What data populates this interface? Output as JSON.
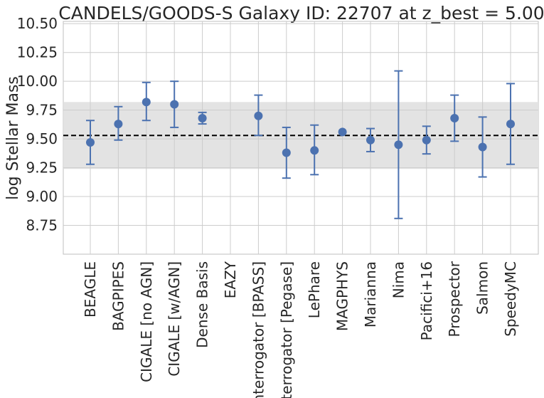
{
  "chart_data": {
    "type": "scatter",
    "title": "CANDELS/GOODS-S Galaxy ID: 22707 at z_best = 5.00",
    "xlabel": "",
    "ylabel": "log Stellar Mass",
    "ylim": [
      8.5,
      10.52
    ],
    "yticks": [
      "8.75",
      "9.00",
      "9.25",
      "9.50",
      "9.75",
      "10.00",
      "10.25",
      "10.50"
    ],
    "categories": [
      "BEAGLE",
      "BAGPIPES",
      "CIGALE [no AGN]",
      "CIGALE [w/AGN]",
      "Dense Basis",
      "EAZY",
      "Interrogator [BPASS]",
      "Interrogator [Pegase]",
      "LePhare",
      "MAGPHYS",
      "Marianna",
      "Nima",
      "Pacifici+16",
      "Prospector",
      "Salmon",
      "SpeedyMC"
    ],
    "series": [
      {
        "values": [
          9.47,
          9.63,
          9.82,
          9.8,
          9.68,
          null,
          9.7,
          9.38,
          9.4,
          9.56,
          9.49,
          9.45,
          9.49,
          9.68,
          9.43,
          9.63
        ],
        "err_low": [
          9.28,
          9.49,
          9.66,
          9.6,
          9.63,
          null,
          9.53,
          9.16,
          9.19,
          null,
          9.39,
          8.81,
          9.37,
          9.48,
          9.17,
          9.28
        ],
        "err_high": [
          9.66,
          9.78,
          9.99,
          10.0,
          9.73,
          null,
          9.88,
          9.6,
          9.62,
          null,
          9.59,
          10.09,
          9.61,
          9.88,
          9.69,
          9.98
        ]
      }
    ],
    "reference_line": {
      "value": 9.53,
      "style": "dashed",
      "color": "#000000"
    },
    "band": {
      "low": 9.24,
      "high": 9.82,
      "color": "#e3e3e3"
    },
    "grid": true,
    "colors": {
      "marker": "#4c72b0",
      "grid": "#cccccc"
    }
  }
}
